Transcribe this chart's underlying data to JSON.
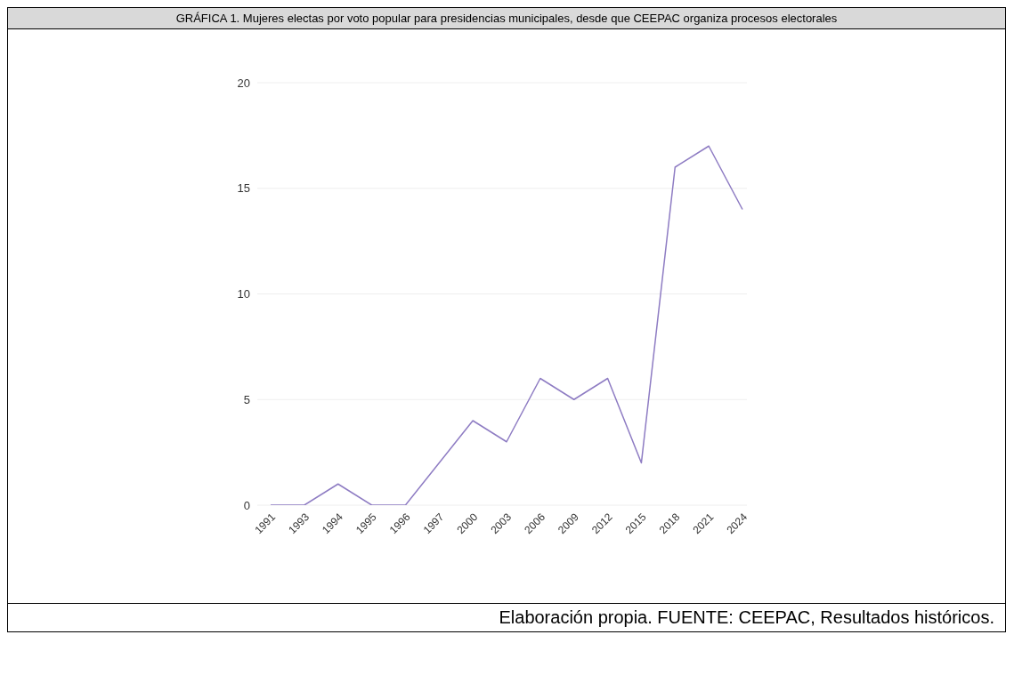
{
  "chart_data": {
    "type": "line",
    "title": "GRÁFICA 1. Mujeres electas por voto popular para presidencias municipales, desde que CEEPAC organiza procesos electorales",
    "categories": [
      "1991",
      "1993",
      "1994",
      "1995",
      "1996",
      "1997",
      "2000",
      "2003",
      "2006",
      "2009",
      "2012",
      "2015",
      "2018",
      "2021",
      "2024"
    ],
    "series": [
      {
        "color": "#8e7cc3",
        "values": [
          0,
          0,
          1,
          0,
          0,
          2,
          4,
          3,
          6,
          5,
          6,
          2,
          16,
          17,
          14
        ]
      }
    ],
    "ylim": [
      0,
      20
    ],
    "yticks": [
      0,
      5,
      10,
      15,
      20
    ],
    "grid": "y",
    "marker": "none",
    "line_style": "solid",
    "annotations": [
      "Elaboración propia. FUENTE: CEEPAC, Resultados históricos."
    ]
  }
}
